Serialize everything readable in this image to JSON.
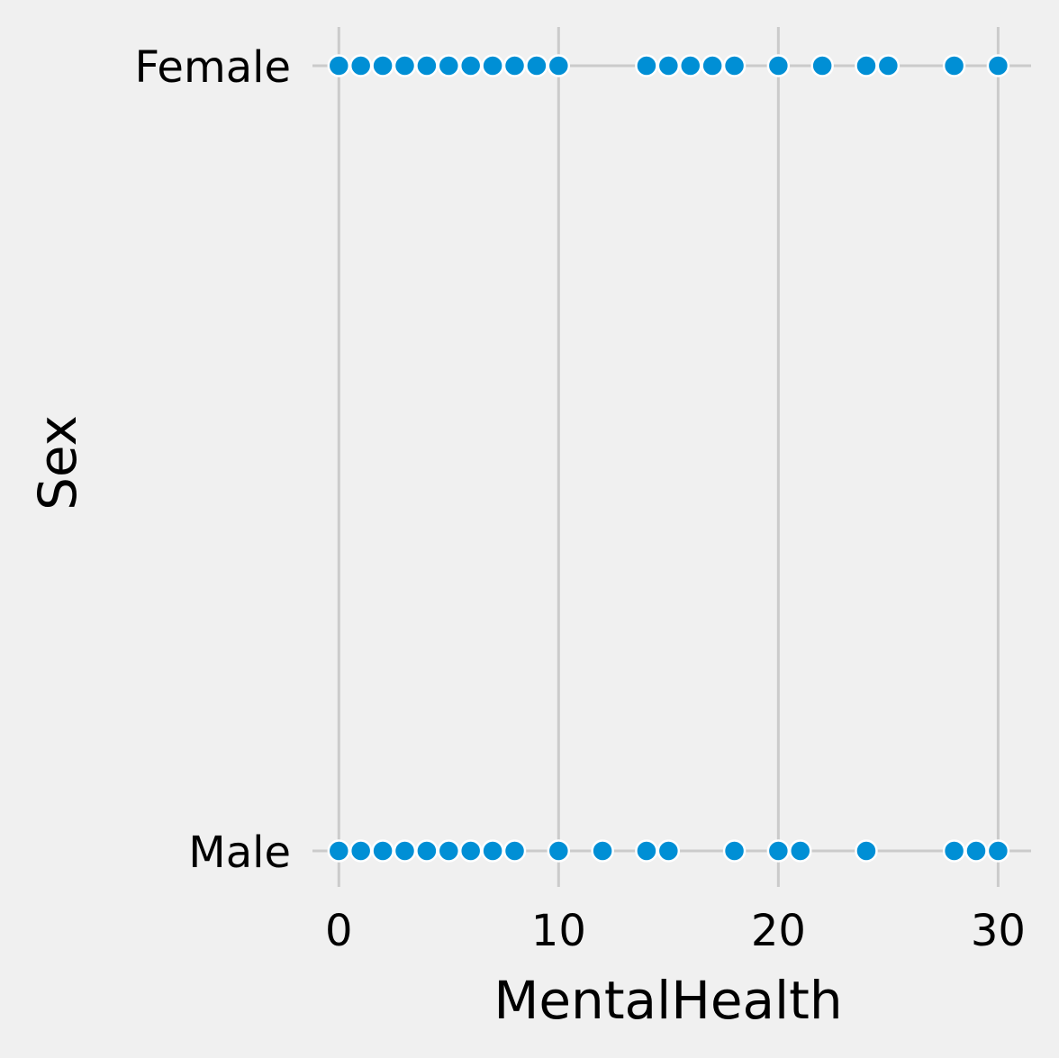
{
  "chart_data": {
    "type": "scatter",
    "title": "",
    "xlabel": "MentalHealth",
    "ylabel": "Sex",
    "xlim": [
      -1.2,
      31.5
    ],
    "x_ticks": [
      0,
      10,
      20,
      30
    ],
    "categories": [
      "Female",
      "Male"
    ],
    "grid": true,
    "marker_color": "#008fd5",
    "background_color": "#f0f0f0",
    "grid_color": "#cbcbcb",
    "series": [
      {
        "category": "Female",
        "x": [
          0,
          1,
          2,
          3,
          4,
          5,
          6,
          7,
          8,
          9,
          10,
          14,
          15,
          16,
          17,
          18,
          20,
          22,
          24,
          25,
          28,
          30
        ]
      },
      {
        "category": "Male",
        "x": [
          0,
          1,
          2,
          3,
          4,
          5,
          6,
          7,
          8,
          10,
          12,
          14,
          15,
          18,
          20,
          21,
          24,
          28,
          29,
          30
        ]
      }
    ]
  }
}
